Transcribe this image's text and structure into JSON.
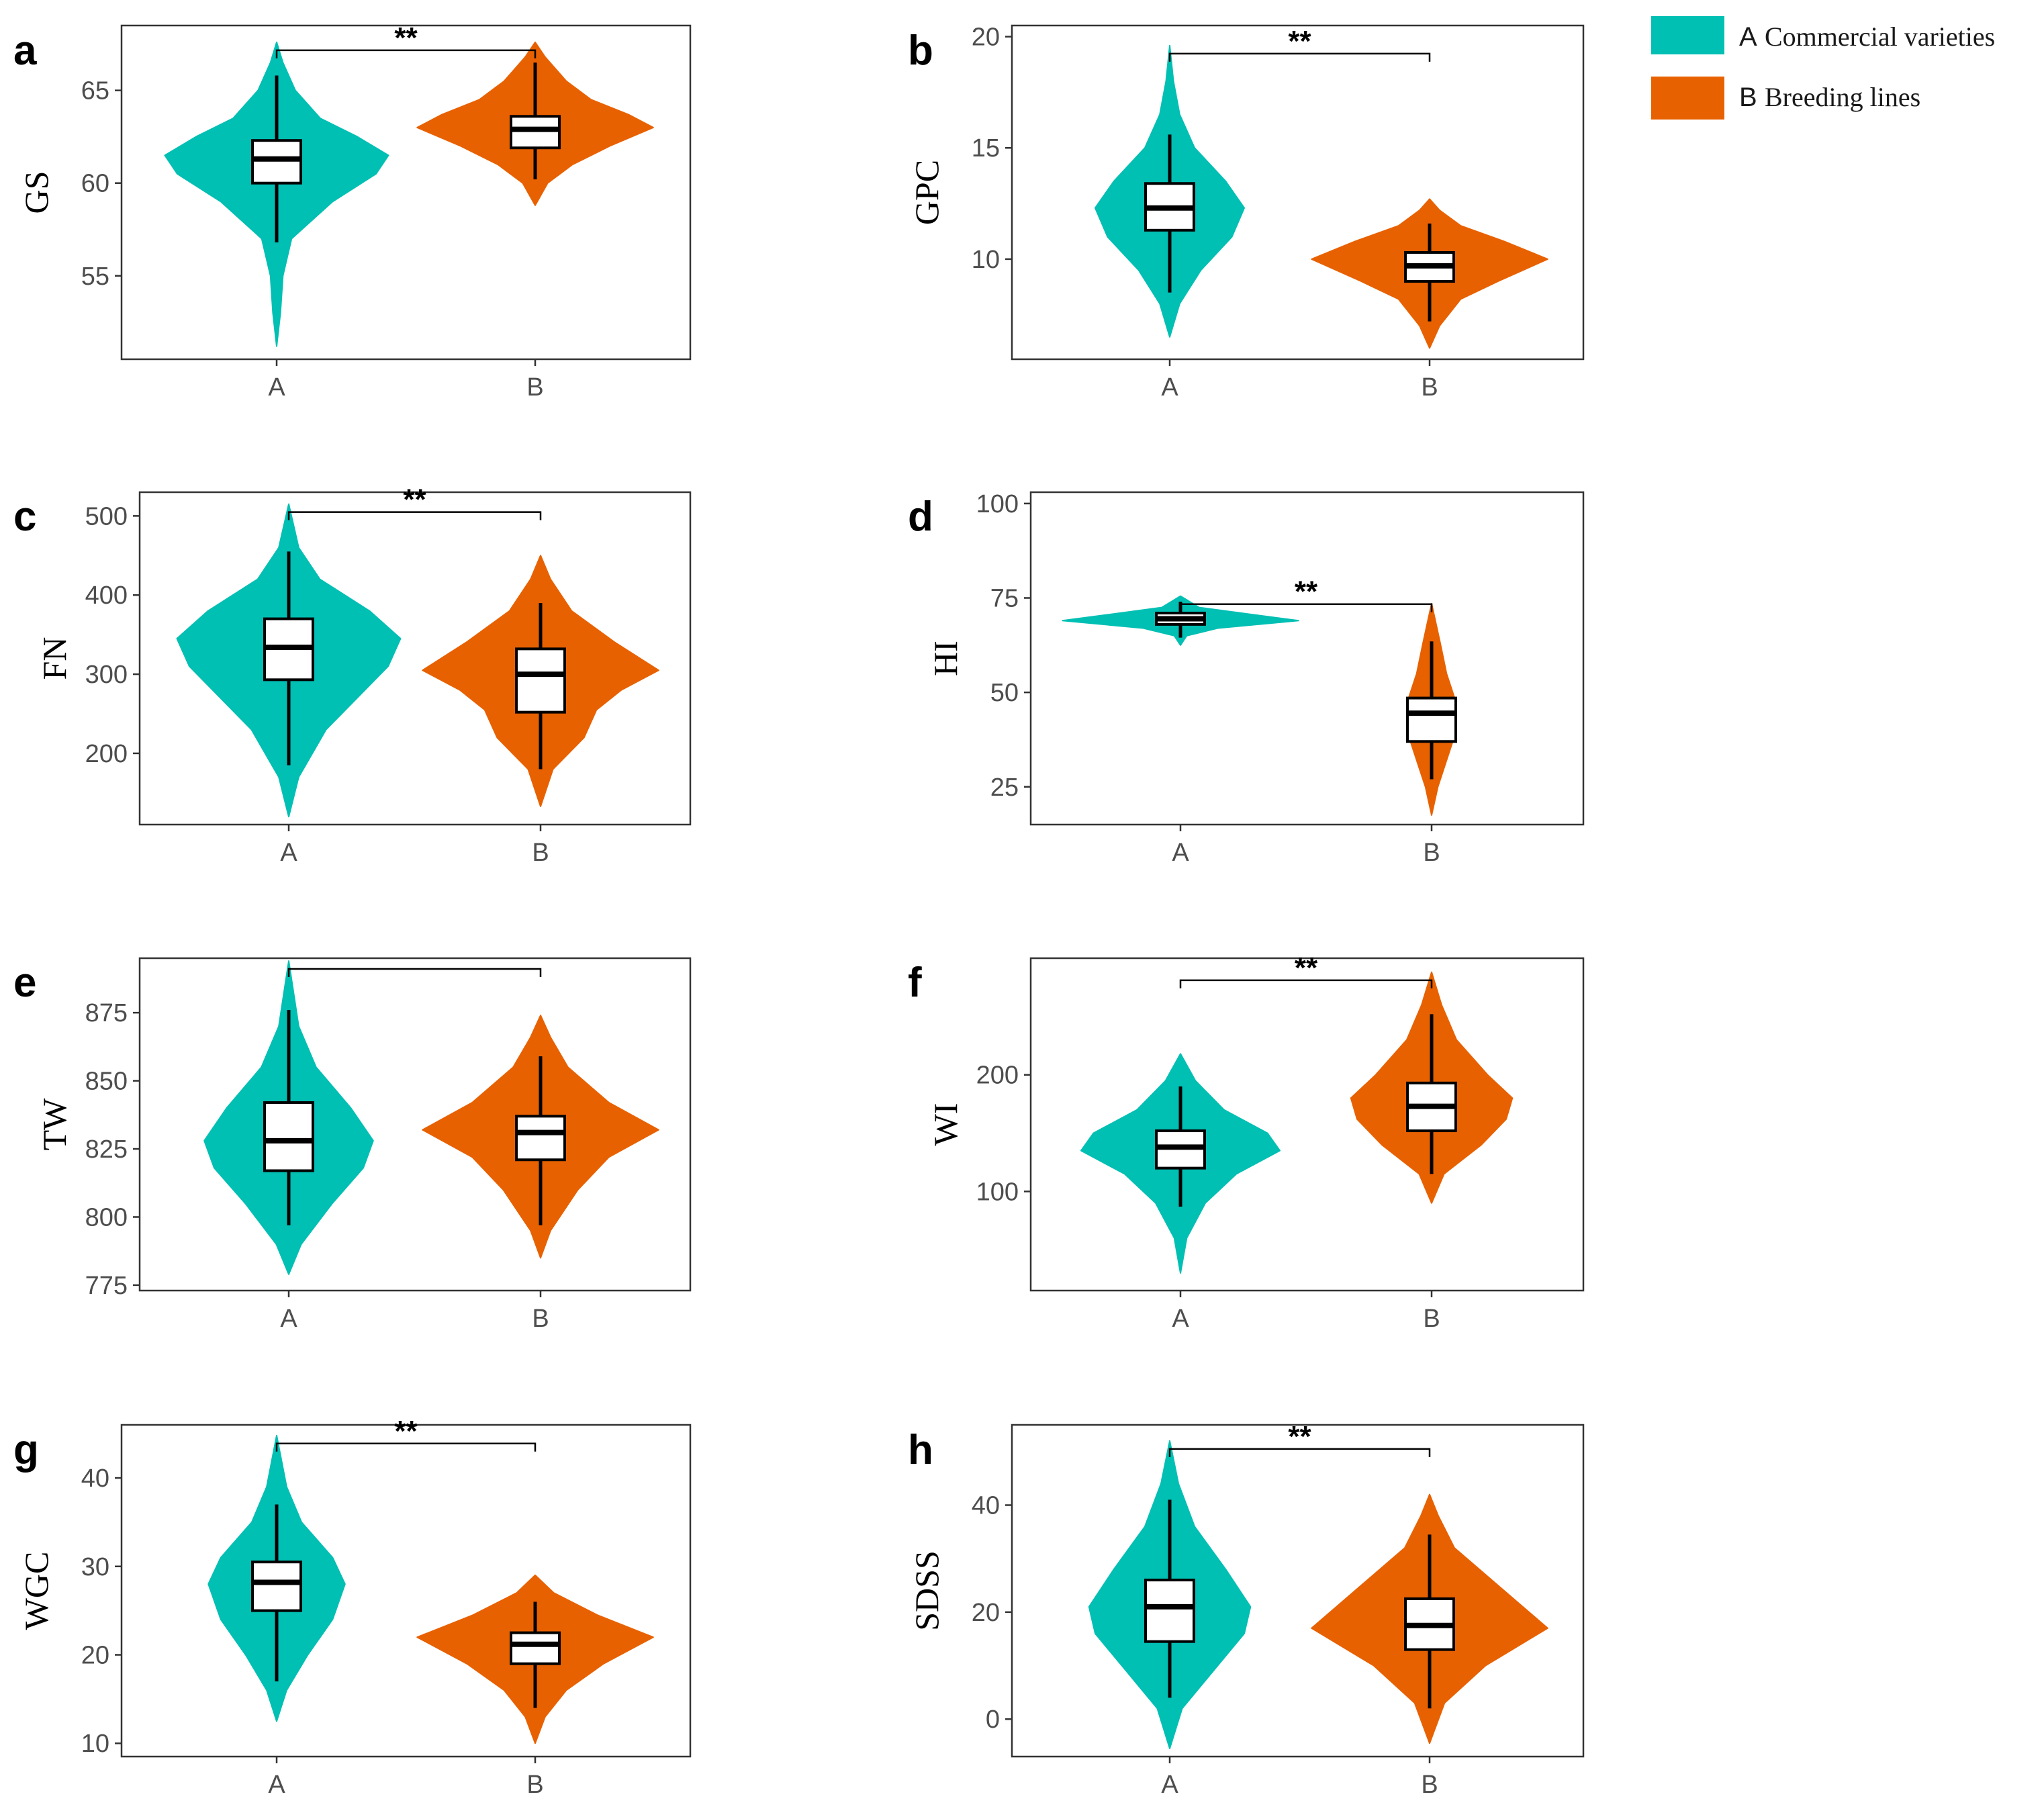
{
  "legend": {
    "items": [
      {
        "key": "A",
        "label": "Commercial varieties",
        "color": "#00BFB3"
      },
      {
        "key": "B",
        "label": "Breeding lines",
        "color": "#E86100"
      }
    ]
  },
  "chart_data": [
    {
      "type": "violin",
      "panel": "a",
      "ylabel": "GS",
      "categories": [
        "A",
        "B"
      ],
      "ylim": [
        50.5,
        68.5
      ],
      "yticks": [
        55,
        60,
        65
      ],
      "significance": "**",
      "groups": [
        {
          "name": "A",
          "violin_min": 51.2,
          "violin_max": 67.6,
          "whisker_low": 56.8,
          "q1": 60.0,
          "median": 61.3,
          "q3": 62.3,
          "whisker_high": 65.8,
          "density": [
            [
              51.2,
              0
            ],
            [
              53,
              0.03
            ],
            [
              55,
              0.05
            ],
            [
              57,
              0.12
            ],
            [
              59,
              0.45
            ],
            [
              60.5,
              0.8
            ],
            [
              61.5,
              0.9
            ],
            [
              62.5,
              0.65
            ],
            [
              63.5,
              0.35
            ],
            [
              65,
              0.15
            ],
            [
              66.5,
              0.05
            ],
            [
              67.6,
              0
            ]
          ]
        },
        {
          "name": "B",
          "violin_min": 58.8,
          "violin_max": 67.6,
          "whisker_low": 60.2,
          "q1": 61.9,
          "median": 62.9,
          "q3": 63.6,
          "whisker_high": 66.5,
          "density": [
            [
              58.8,
              0
            ],
            [
              60,
              0.1
            ],
            [
              61,
              0.3
            ],
            [
              62,
              0.6
            ],
            [
              63,
              0.95
            ],
            [
              63.7,
              0.75
            ],
            [
              64.5,
              0.45
            ],
            [
              65.5,
              0.25
            ],
            [
              66.8,
              0.08
            ],
            [
              67.6,
              0
            ]
          ]
        }
      ]
    },
    {
      "type": "violin",
      "panel": "b",
      "ylabel": "GPC",
      "categories": [
        "A",
        "B"
      ],
      "ylim": [
        5.5,
        20.5
      ],
      "yticks": [
        10,
        15,
        20
      ],
      "significance": "**",
      "groups": [
        {
          "name": "A",
          "violin_min": 6.5,
          "violin_max": 19.6,
          "whisker_low": 8.5,
          "q1": 11.3,
          "median": 12.3,
          "q3": 13.4,
          "whisker_high": 15.6,
          "density": [
            [
              6.5,
              0
            ],
            [
              8,
              0.08
            ],
            [
              9.5,
              0.25
            ],
            [
              11,
              0.5
            ],
            [
              12.3,
              0.6
            ],
            [
              13.5,
              0.45
            ],
            [
              15,
              0.2
            ],
            [
              16.5,
              0.08
            ],
            [
              18,
              0.03
            ],
            [
              19.6,
              0
            ]
          ]
        },
        {
          "name": "B",
          "violin_min": 6.0,
          "violin_max": 12.7,
          "whisker_low": 7.2,
          "q1": 9.0,
          "median": 9.7,
          "q3": 10.3,
          "whisker_high": 11.6,
          "density": [
            [
              6,
              0
            ],
            [
              7,
              0.08
            ],
            [
              8.2,
              0.25
            ],
            [
              9,
              0.55
            ],
            [
              10,
              0.95
            ],
            [
              10.8,
              0.6
            ],
            [
              11.5,
              0.25
            ],
            [
              12.2,
              0.08
            ],
            [
              12.7,
              0
            ]
          ]
        }
      ]
    },
    {
      "type": "violin",
      "panel": "c",
      "ylabel": "FN",
      "categories": [
        "A",
        "B"
      ],
      "ylim": [
        110,
        530
      ],
      "yticks": [
        200,
        300,
        400,
        500
      ],
      "significance": "**",
      "groups": [
        {
          "name": "A",
          "violin_min": 120,
          "violin_max": 515,
          "whisker_low": 185,
          "q1": 293,
          "median": 334,
          "q3": 370,
          "whisker_high": 455,
          "density": [
            [
              120,
              0
            ],
            [
              170,
              0.08
            ],
            [
              230,
              0.3
            ],
            [
              270,
              0.55
            ],
            [
              310,
              0.8
            ],
            [
              345,
              0.9
            ],
            [
              380,
              0.65
            ],
            [
              420,
              0.25
            ],
            [
              460,
              0.08
            ],
            [
              515,
              0
            ]
          ]
        },
        {
          "name": "B",
          "violin_min": 133,
          "violin_max": 450,
          "whisker_low": 180,
          "q1": 252,
          "median": 300,
          "q3": 332,
          "whisker_high": 390,
          "density": [
            [
              133,
              0
            ],
            [
              180,
              0.1
            ],
            [
              220,
              0.35
            ],
            [
              255,
              0.45
            ],
            [
              280,
              0.65
            ],
            [
              305,
              0.95
            ],
            [
              340,
              0.6
            ],
            [
              380,
              0.25
            ],
            [
              420,
              0.08
            ],
            [
              450,
              0
            ]
          ]
        }
      ]
    },
    {
      "type": "violin",
      "panel": "d",
      "ylabel": "HI",
      "categories": [
        "A",
        "B"
      ],
      "ylim": [
        15,
        103
      ],
      "yticks": [
        25,
        50,
        75,
        100
      ],
      "significance": "**",
      "groups": [
        {
          "name": "A",
          "violin_min": 62.5,
          "violin_max": 75.5,
          "whisker_low": 64.5,
          "q1": 68.0,
          "median": 69.5,
          "q3": 71.0,
          "whisker_high": 74.0,
          "density": [
            [
              62.5,
              0
            ],
            [
              65,
              0.05
            ],
            [
              67,
              0.3
            ],
            [
              69,
              0.95
            ],
            [
              70.5,
              0.6
            ],
            [
              72.5,
              0.15
            ],
            [
              75.5,
              0
            ]
          ]
        },
        {
          "name": "B",
          "violin_min": 17.5,
          "violin_max": 73.5,
          "whisker_low": 27,
          "q1": 37.0,
          "median": 44.5,
          "q3": 48.5,
          "whisker_high": 63.5,
          "density": [
            [
              17.5,
              0
            ],
            [
              25,
              0.05
            ],
            [
              32,
              0.12
            ],
            [
              40,
              0.2
            ],
            [
              47,
              0.2
            ],
            [
              55,
              0.12
            ],
            [
              63,
              0.07
            ],
            [
              73.5,
              0
            ]
          ]
        }
      ]
    },
    {
      "type": "violin",
      "panel": "e",
      "ylabel": "TW",
      "categories": [
        "A",
        "B"
      ],
      "ylim": [
        773,
        895
      ],
      "yticks": [
        775,
        800,
        825,
        850,
        875
      ],
      "significance": "",
      "groups": [
        {
          "name": "A",
          "violin_min": 779,
          "violin_max": 894,
          "whisker_low": 797,
          "q1": 817,
          "median": 828,
          "q3": 842,
          "whisker_high": 876,
          "density": [
            [
              779,
              0
            ],
            [
              790,
              0.1
            ],
            [
              805,
              0.35
            ],
            [
              818,
              0.6
            ],
            [
              828,
              0.68
            ],
            [
              840,
              0.5
            ],
            [
              855,
              0.22
            ],
            [
              870,
              0.08
            ],
            [
              894,
              0
            ]
          ]
        },
        {
          "name": "B",
          "violin_min": 785,
          "violin_max": 874,
          "whisker_low": 797,
          "q1": 821,
          "median": 831,
          "q3": 837,
          "whisker_high": 859,
          "density": [
            [
              785,
              0
            ],
            [
              795,
              0.08
            ],
            [
              810,
              0.3
            ],
            [
              822,
              0.55
            ],
            [
              832,
              0.95
            ],
            [
              842,
              0.55
            ],
            [
              855,
              0.22
            ],
            [
              866,
              0.08
            ],
            [
              874,
              0
            ]
          ]
        }
      ]
    },
    {
      "type": "violin",
      "panel": "f",
      "ylabel": "WI",
      "categories": [
        "A",
        "B"
      ],
      "ylim": [
        15,
        300
      ],
      "yticks": [
        100,
        200
      ],
      "significance": "**",
      "groups": [
        {
          "name": "A",
          "violin_min": 30,
          "violin_max": 218,
          "whisker_low": 87,
          "q1": 120,
          "median": 138,
          "q3": 152,
          "whisker_high": 190,
          "density": [
            [
              30,
              0
            ],
            [
              60,
              0.05
            ],
            [
              90,
              0.2
            ],
            [
              115,
              0.45
            ],
            [
              135,
              0.8
            ],
            [
              150,
              0.7
            ],
            [
              170,
              0.35
            ],
            [
              195,
              0.12
            ],
            [
              218,
              0
            ]
          ]
        },
        {
          "name": "B",
          "violin_min": 90,
          "violin_max": 288,
          "whisker_low": 115,
          "q1": 152,
          "median": 173,
          "q3": 193,
          "whisker_high": 252,
          "density": [
            [
              90,
              0
            ],
            [
              115,
              0.1
            ],
            [
              140,
              0.4
            ],
            [
              162,
              0.6
            ],
            [
              180,
              0.65
            ],
            [
              200,
              0.45
            ],
            [
              230,
              0.2
            ],
            [
              260,
              0.08
            ],
            [
              288,
              0
            ]
          ]
        }
      ]
    },
    {
      "type": "violin",
      "panel": "g",
      "ylabel": "WGC",
      "categories": [
        "A",
        "B"
      ],
      "ylim": [
        8.5,
        46
      ],
      "yticks": [
        10,
        20,
        30,
        40
      ],
      "significance": "**",
      "groups": [
        {
          "name": "A",
          "violin_min": 12.5,
          "violin_max": 44.8,
          "whisker_low": 17.0,
          "q1": 25.0,
          "median": 28.2,
          "q3": 30.5,
          "whisker_high": 37.0,
          "density": [
            [
              12.5,
              0
            ],
            [
              16,
              0.08
            ],
            [
              20,
              0.25
            ],
            [
              24,
              0.45
            ],
            [
              28,
              0.55
            ],
            [
              31,
              0.45
            ],
            [
              35,
              0.2
            ],
            [
              39,
              0.08
            ],
            [
              44.8,
              0
            ]
          ]
        },
        {
          "name": "B",
          "violin_min": 10.0,
          "violin_max": 29.0,
          "whisker_low": 14.0,
          "q1": 19.0,
          "median": 21.2,
          "q3": 22.5,
          "whisker_high": 26.0,
          "density": [
            [
              10,
              0
            ],
            [
              13,
              0.08
            ],
            [
              16,
              0.25
            ],
            [
              19,
              0.55
            ],
            [
              22,
              0.95
            ],
            [
              24.5,
              0.5
            ],
            [
              27,
              0.15
            ],
            [
              29,
              0
            ]
          ]
        }
      ]
    },
    {
      "type": "violin",
      "panel": "h",
      "ylabel": "SDSS",
      "categories": [
        "A",
        "B"
      ],
      "ylim": [
        -7,
        55
      ],
      "yticks": [
        0,
        20,
        40
      ],
      "significance": "**",
      "groups": [
        {
          "name": "A",
          "violin_min": -5.5,
          "violin_max": 52,
          "whisker_low": 4,
          "q1": 14.5,
          "median": 21,
          "q3": 26,
          "whisker_high": 41,
          "density": [
            [
              -5.5,
              0
            ],
            [
              2,
              0.1
            ],
            [
              9,
              0.35
            ],
            [
              16,
              0.6
            ],
            [
              21,
              0.65
            ],
            [
              28,
              0.45
            ],
            [
              36,
              0.2
            ],
            [
              44,
              0.07
            ],
            [
              52,
              0
            ]
          ]
        },
        {
          "name": "B",
          "violin_min": -4.5,
          "violin_max": 42,
          "whisker_low": 2,
          "q1": 13,
          "median": 17.5,
          "q3": 22.5,
          "whisker_high": 34.5,
          "density": [
            [
              -4.5,
              0
            ],
            [
              3,
              0.12
            ],
            [
              10,
              0.45
            ],
            [
              17,
              0.95
            ],
            [
              24,
              0.6
            ],
            [
              32,
              0.2
            ],
            [
              38,
              0.07
            ],
            [
              42,
              0
            ]
          ]
        }
      ]
    }
  ]
}
